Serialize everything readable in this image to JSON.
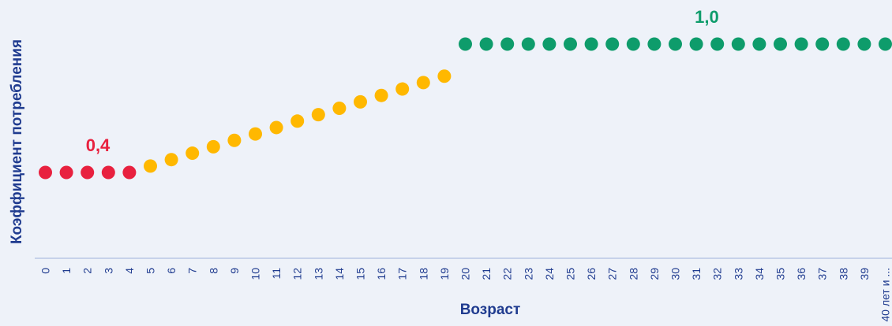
{
  "chart_data": {
    "type": "scatter",
    "title": "",
    "xlabel": "Возраст",
    "ylabel": "Коэффициент потребления",
    "ylim": [
      0,
      1.05
    ],
    "grid": false,
    "categories": [
      "0",
      "1",
      "2",
      "3",
      "4",
      "5",
      "6",
      "7",
      "8",
      "9",
      "10",
      "11",
      "12",
      "13",
      "14",
      "15",
      "16",
      "17",
      "18",
      "19",
      "20",
      "21",
      "22",
      "23",
      "24",
      "25",
      "26",
      "27",
      "28",
      "29",
      "30",
      "31",
      "32",
      "33",
      "34",
      "35",
      "36",
      "37",
      "38",
      "39",
      "40 лет и ..."
    ],
    "values": [
      0.4,
      0.4,
      0.4,
      0.4,
      0.4,
      0.43,
      0.46,
      0.49,
      0.52,
      0.55,
      0.58,
      0.61,
      0.64,
      0.67,
      0.7,
      0.73,
      0.76,
      0.79,
      0.82,
      0.85,
      1.0,
      1.0,
      1.0,
      1.0,
      1.0,
      1.0,
      1.0,
      1.0,
      1.0,
      1.0,
      1.0,
      1.0,
      1.0,
      1.0,
      1.0,
      1.0,
      1.0,
      1.0,
      1.0,
      1.0,
      1.0
    ],
    "segments": [
      {
        "from": 0,
        "to": 4,
        "color": "#e8213f"
      },
      {
        "from": 5,
        "to": 19,
        "color": "#ffb800"
      },
      {
        "from": 20,
        "to": 40,
        "color": "#0e9c6b"
      }
    ],
    "annotations": [
      {
        "text": "0,4",
        "category": "2",
        "value": 0.4,
        "color": "#e8213f"
      },
      {
        "text": "1,0",
        "category": "31",
        "value": 1.0,
        "color": "#0e9c6b"
      }
    ],
    "axis_color": "#b8c8e6",
    "text_color": "#1f3b8f"
  }
}
